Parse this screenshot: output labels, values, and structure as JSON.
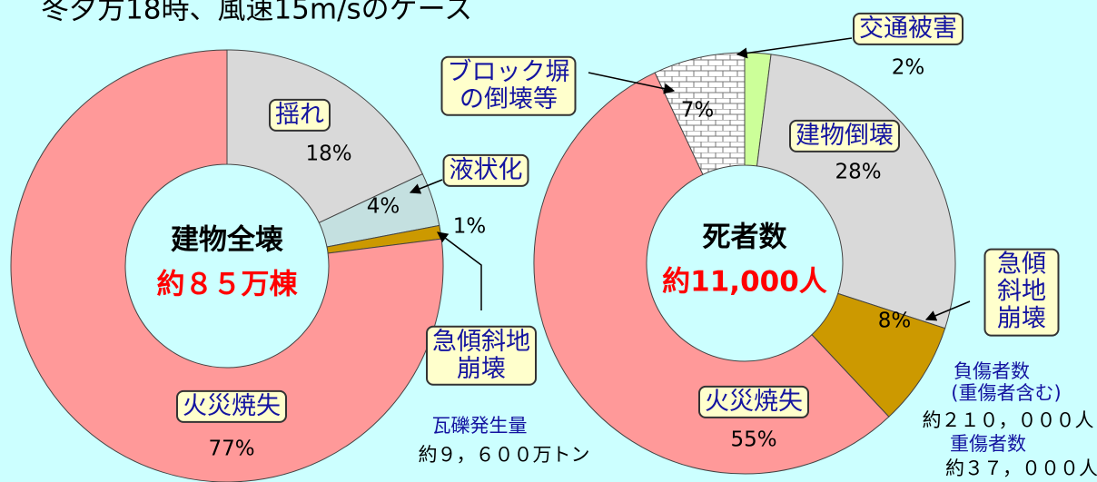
{
  "title": "冬夕方18時、風速15m/sのケース",
  "chart_data": [
    {
      "type": "pie",
      "categories": [
        "揺れ",
        "液状化",
        "急傾斜地\n崩壊",
        "火災焼失"
      ],
      "values": [
        18,
        4,
        1,
        77
      ],
      "value_labels": [
        "18%",
        "4%",
        "1%",
        "77%"
      ],
      "colors": [
        "#d9d9d9",
        "#c4e0e0",
        "#cc9900",
        "#ff9999"
      ],
      "center_label": [
        "建物全壊",
        "約８５万棟"
      ],
      "annotations": [
        "瓦礫発生量",
        "約９，６００万トン"
      ]
    },
    {
      "type": "pie",
      "categories": [
        "交通被害",
        "建物倒壊",
        "急傾斜地\n崩壊",
        "火災焼失",
        "ブロック塀\nの倒壊等"
      ],
      "values": [
        2,
        28,
        8,
        55,
        7
      ],
      "value_labels": [
        "2%",
        "28%",
        "8%",
        "55%",
        "7%"
      ],
      "colors": [
        "#ccff99",
        "#d9d9d9",
        "#cc9900",
        "#ff9999",
        "url(#brick)"
      ],
      "center_label": [
        "死者数",
        "約11,000人"
      ],
      "annotations": [
        "負傷者数",
        "(重傷者含む)",
        "約２１０，０００人",
        "重傷者数",
        "約３７，０００人"
      ]
    }
  ]
}
